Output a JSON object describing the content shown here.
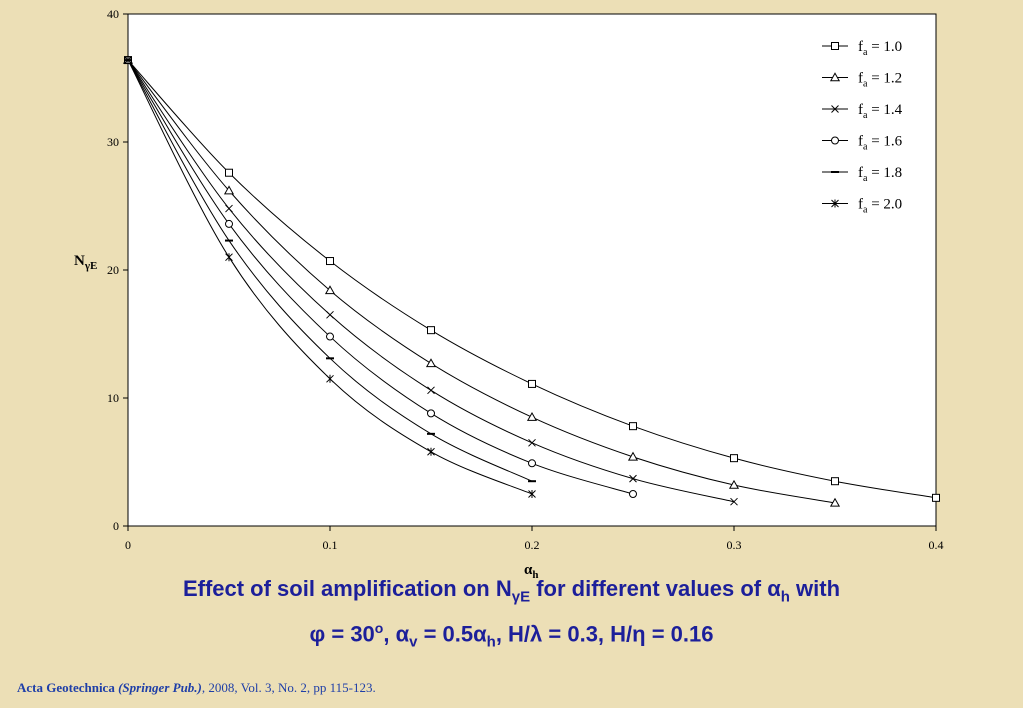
{
  "chart_data": {
    "type": "line",
    "title": "",
    "xlabel": "α",
    "xlabel_sub": "h",
    "ylabel": "N",
    "ylabel_sub": "γE",
    "xlim": [
      0,
      0.4
    ],
    "ylim": [
      0,
      40
    ],
    "x_ticks": [
      "0",
      "0.1",
      "0.2",
      "0.3",
      "0.4"
    ],
    "y_ticks": [
      "0",
      "10",
      "20",
      "30",
      "40"
    ],
    "grid": false,
    "legend_position": "top-right",
    "series": [
      {
        "name": "= 1.0",
        "marker": "square",
        "x": [
          0,
          0.05,
          0.1,
          0.15,
          0.2,
          0.25,
          0.3,
          0.35,
          0.4
        ],
        "y": [
          36.4,
          27.6,
          20.7,
          15.3,
          11.1,
          7.8,
          5.3,
          3.5,
          2.2
        ]
      },
      {
        "name": "= 1.2",
        "marker": "triangle",
        "x": [
          0,
          0.05,
          0.1,
          0.15,
          0.2,
          0.25,
          0.3,
          0.35
        ],
        "y": [
          36.4,
          26.2,
          18.4,
          12.7,
          8.5,
          5.4,
          3.2,
          1.8
        ]
      },
      {
        "name": "= 1.4",
        "marker": "x",
        "x": [
          0,
          0.05,
          0.1,
          0.15,
          0.2,
          0.25,
          0.3
        ],
        "y": [
          36.4,
          24.8,
          16.5,
          10.6,
          6.5,
          3.7,
          1.9
        ]
      },
      {
        "name": "= 1.6",
        "marker": "circle",
        "x": [
          0,
          0.05,
          0.1,
          0.15,
          0.2,
          0.25
        ],
        "y": [
          36.4,
          23.6,
          14.8,
          8.8,
          4.9,
          2.5
        ]
      },
      {
        "name": "= 1.8",
        "marker": "dash",
        "x": [
          0,
          0.05,
          0.1,
          0.15,
          0.2
        ],
        "y": [
          36.4,
          22.3,
          13.1,
          7.2,
          3.5
        ]
      },
      {
        "name": "= 2.0",
        "marker": "asterisk",
        "x": [
          0,
          0.05,
          0.1,
          0.15,
          0.2
        ],
        "y": [
          36.4,
          21.0,
          11.5,
          5.8,
          2.5
        ]
      }
    ],
    "legend_prefix": "f",
    "legend_prefix_sub": "a"
  },
  "caption": {
    "line1_a": "Effect of soil amplification on N",
    "line1_sub1": "γE",
    "line1_b": " for different values of α",
    "line1_sub2": "h",
    "line1_c": " with",
    "line2_a": "φ = 30",
    "line2_sup": "o",
    "line2_b": ", α",
    "line2_sub1": "v",
    "line2_c": " = 0.5α",
    "line2_sub2": "h",
    "line2_d": ", H/λ = 0.3, H/η = 0.16"
  },
  "citation": {
    "journal": "Acta Geotechnica",
    "publisher": "(Springer Pub.)",
    "details": ", 2008, Vol. 3, No. 2, pp 115-123."
  },
  "colors": {
    "background": "#ecdfb6",
    "plot_area": "#ffffff",
    "caption": "#1c1f9a",
    "citation": "#1f3fa8"
  }
}
